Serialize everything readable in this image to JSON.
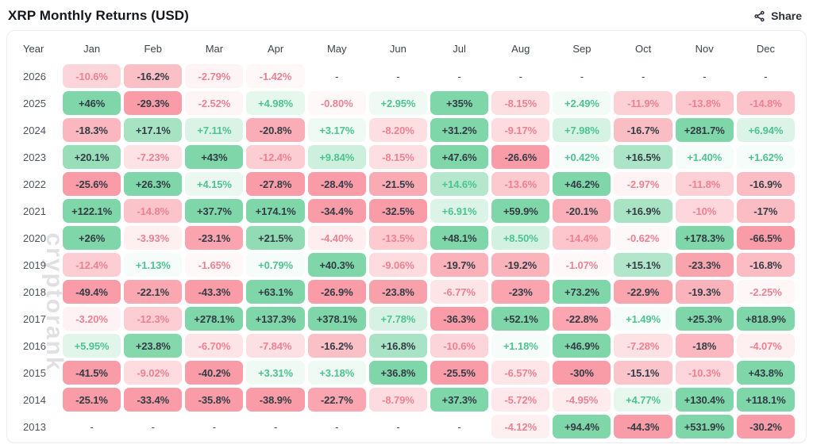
{
  "page": {
    "title": "XRP Monthly Returns (USD)",
    "share_label": "Share"
  },
  "watermark": "cryptorank",
  "colors": {
    "positive_base": "#7fd6a8",
    "negative_base": "#f99ca7",
    "positive_text": "#4cc490",
    "negative_text": "#ee8191",
    "dark_text": "#333b45"
  },
  "chart_data": {
    "type": "heatmap",
    "title": "XRP Monthly Returns (USD)",
    "year_header": "Year",
    "months": [
      "Jan",
      "Feb",
      "Mar",
      "Apr",
      "May",
      "Jun",
      "Jul",
      "Aug",
      "Sep",
      "Oct",
      "Nov",
      "Dec"
    ],
    "rows": [
      {
        "year": "2026",
        "values": [
          "-10.6%",
          "-16.2%",
          "-2.79%",
          "-1.42%",
          "-",
          "-",
          "-",
          "-",
          "-",
          "-",
          "-",
          "-"
        ]
      },
      {
        "year": "2025",
        "values": [
          "+46%",
          "-29.3%",
          "-2.52%",
          "+4.98%",
          "-0.80%",
          "+2.95%",
          "+35%",
          "-8.15%",
          "+2.49%",
          "-11.9%",
          "-13.8%",
          "-14.8%"
        ]
      },
      {
        "year": "2024",
        "values": [
          "-18.3%",
          "+17.1%",
          "+7.11%",
          "-20.8%",
          "+3.17%",
          "-8.20%",
          "+31.2%",
          "-9.17%",
          "+7.98%",
          "-16.7%",
          "+281.7%",
          "+6.94%"
        ]
      },
      {
        "year": "2023",
        "values": [
          "+20.1%",
          "-7.23%",
          "+43%",
          "-12.4%",
          "+9.84%",
          "-8.15%",
          "+47.6%",
          "-26.6%",
          "+0.42%",
          "+16.5%",
          "+1.40%",
          "+1.62%"
        ]
      },
      {
        "year": "2022",
        "values": [
          "-25.6%",
          "+26.3%",
          "+4.15%",
          "-27.8%",
          "-28.4%",
          "-21.5%",
          "+14.6%",
          "-13.6%",
          "+46.2%",
          "-2.97%",
          "-11.8%",
          "-16.9%"
        ]
      },
      {
        "year": "2021",
        "values": [
          "+122.1%",
          "-14.8%",
          "+37.7%",
          "+174.1%",
          "-34.4%",
          "-32.5%",
          "+6.91%",
          "+59.9%",
          "-20.1%",
          "+16.9%",
          "-10%",
          "-17%"
        ]
      },
      {
        "year": "2020",
        "values": [
          "+26%",
          "-3.93%",
          "-23.1%",
          "+21.5%",
          "-4.40%",
          "-13.5%",
          "+48.1%",
          "+8.50%",
          "-14.4%",
          "-0.62%",
          "+178.3%",
          "-66.5%"
        ]
      },
      {
        "year": "2019",
        "values": [
          "-12.4%",
          "+1.13%",
          "-1.65%",
          "+0.79%",
          "+40.3%",
          "-9.06%",
          "-19.7%",
          "-19.2%",
          "-1.07%",
          "+15.1%",
          "-23.3%",
          "-16.8%"
        ]
      },
      {
        "year": "2018",
        "values": [
          "-49.4%",
          "-22.1%",
          "-43.3%",
          "+63.1%",
          "-26.9%",
          "-23.8%",
          "-6.77%",
          "-23%",
          "+73.2%",
          "-22.9%",
          "-19.3%",
          "-2.25%"
        ]
      },
      {
        "year": "2017",
        "values": [
          "-3.20%",
          "-12.3%",
          "+278.1%",
          "+137.3%",
          "+378.1%",
          "+7.78%",
          "-36.3%",
          "+52.1%",
          "-22.8%",
          "+1.49%",
          "+25.3%",
          "+818.9%"
        ]
      },
      {
        "year": "2016",
        "values": [
          "+5.95%",
          "+23.8%",
          "-6.70%",
          "-7.84%",
          "-16.2%",
          "+16.8%",
          "-10.6%",
          "+1.18%",
          "+46.9%",
          "-7.28%",
          "-18%",
          "-4.07%"
        ]
      },
      {
        "year": "2015",
        "values": [
          "-41.5%",
          "-9.02%",
          "-40.2%",
          "+3.31%",
          "+3.18%",
          "+36.8%",
          "-25.5%",
          "-6.57%",
          "-30%",
          "-15.1%",
          "-10.3%",
          "+43.8%"
        ]
      },
      {
        "year": "2014",
        "values": [
          "-25.1%",
          "-33.4%",
          "-35.8%",
          "-38.9%",
          "-22.7%",
          "-8.79%",
          "+37.3%",
          "-5.72%",
          "-4.95%",
          "+4.77%",
          "+130.4%",
          "+118.1%"
        ]
      },
      {
        "year": "2013",
        "values": [
          "-",
          "-",
          "-",
          "-",
          "-",
          "-",
          "-",
          "-4.12%",
          "+94.4%",
          "-44.3%",
          "+531.9%",
          "-30.2%"
        ]
      }
    ]
  }
}
